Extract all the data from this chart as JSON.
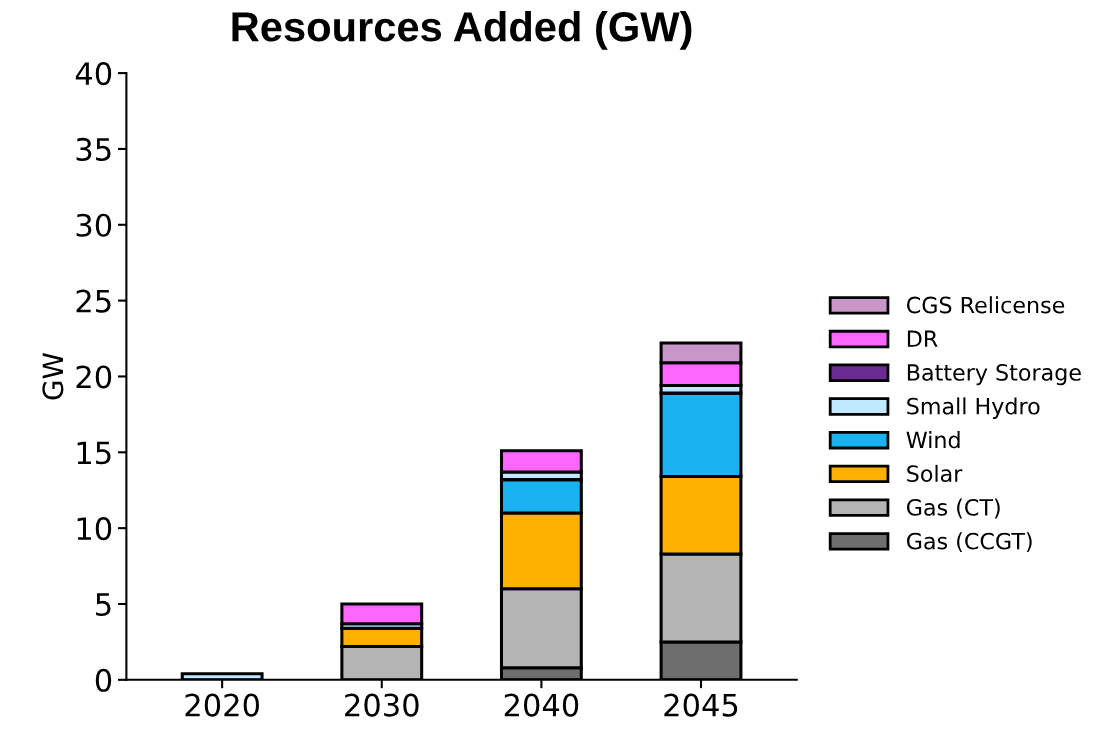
{
  "chart_data": {
    "type": "bar",
    "stacked": true,
    "title": "Resources Added (GW)",
    "ylabel": "GW",
    "categories": [
      "2020",
      "2030",
      "2040",
      "2045"
    ],
    "series": [
      {
        "name": "Gas (CCGT)",
        "color": "#6e6e6e",
        "values": [
          0,
          0,
          0.8,
          2.5
        ]
      },
      {
        "name": "Gas (CT)",
        "color": "#b4b4b4",
        "values": [
          0,
          2.2,
          5.2,
          5.8
        ]
      },
      {
        "name": "Solar",
        "color": "#ffb000",
        "values": [
          0,
          1.2,
          5.0,
          5.1
        ]
      },
      {
        "name": "Wind",
        "color": "#1ab2f0",
        "values": [
          0,
          0,
          2.2,
          5.5
        ]
      },
      {
        "name": "Small Hydro",
        "color": "#c0e8ff",
        "values": [
          0.4,
          0.3,
          0.5,
          0.5
        ]
      },
      {
        "name": "Battery Storage",
        "color": "#6a2c91",
        "values": [
          0,
          0,
          0,
          0
        ]
      },
      {
        "name": "DR",
        "color": "#ff66ff",
        "values": [
          0,
          1.3,
          1.4,
          1.5
        ]
      },
      {
        "name": "CGS Relicense",
        "color": "#c896c8",
        "values": [
          0,
          0,
          0,
          1.3
        ]
      }
    ],
    "ylim": [
      0,
      40
    ],
    "yticks": [
      0,
      5,
      10,
      15,
      20,
      25,
      30,
      35,
      40
    ],
    "grid": false,
    "legend": "right"
  }
}
